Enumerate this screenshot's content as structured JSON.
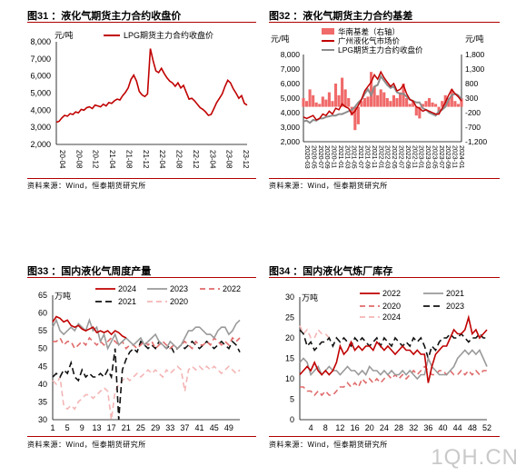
{
  "charts": [
    {
      "title": "图31 ：液化气期货主力合约收盘价",
      "source": "资料来源：Wind，恒泰期货研究所",
      "chart_data": {
        "type": "line",
        "yunit": "元/吨",
        "ylim": [
          2000,
          8000
        ],
        "yticks": [
          "2,000",
          "3,000",
          "4,000",
          "5,000",
          "6,000",
          "7,000",
          "8,000"
        ],
        "xticks": [
          "20-04",
          "20-08",
          "20-12",
          "21-04",
          "21-08",
          "21-12",
          "22-04",
          "22-08",
          "22-12",
          "23-04",
          "23-08",
          "23-12"
        ],
        "series": [
          {
            "name": "LPG期货主力合约收盘价",
            "color": "#c00000",
            "values": [
              3300,
              3350,
              3550,
              3700,
              3650,
              3800,
              3750,
              3900,
              3850,
              4050,
              4000,
              4150,
              4200,
              4100,
              4300,
              4250,
              4200,
              4350,
              4250,
              4450,
              4400,
              4550,
              4650,
              4600,
              4850,
              5050,
              5300,
              5800,
              6050,
              5700,
              5100,
              4900,
              4800,
              4950,
              7600,
              6900,
              6300,
              6200,
              6450,
              6150,
              5900,
              5700,
              5600,
              5400,
              5600,
              5300,
              5450,
              5050,
              4650,
              4700,
              4550,
              4350,
              4150,
              4050,
              3900,
              3700,
              3750,
              4100,
              4450,
              4700,
              4950,
              5400,
              5750,
              5600,
              5250,
              5000,
              4700,
              4850,
              4400,
              4300
            ]
          }
        ]
      }
    },
    {
      "title": "图32 ：液化气期货主力合约基差",
      "source": "资料来源：Wind，恒泰期货研究所",
      "chart_data": {
        "type": "line",
        "yunit": "元/吨",
        "y2unit": "元/吨",
        "ylim": [
          2000,
          8000
        ],
        "yticks": [
          "2,000",
          "3,000",
          "4,000",
          "5,000",
          "6,000",
          "7,000",
          "8,000"
        ],
        "y2lim": [
          -1200,
          1800
        ],
        "y2ticks": [
          "-1,200",
          "-700",
          "-200",
          "300",
          "800",
          "1,300",
          "1,800"
        ],
        "xticks": [
          "2020-03",
          "2020-05",
          "2020-07",
          "2020-09",
          "2020-11",
          "2021-01",
          "2021-03",
          "2021-05",
          "2021-07",
          "2021-09",
          "2021-11",
          "2022-01",
          "2022-03",
          "2022-05",
          "2022-07",
          "2022-09",
          "2022-11",
          "2023-01",
          "2023-03",
          "2023-05",
          "2023-07",
          "2023-09",
          "2023-11",
          "2024-01"
        ],
        "legend": [
          "华南基差（右轴）",
          "广州液化气市场价",
          "LPG期货主力合约收盘价"
        ],
        "series": [
          {
            "name": "华南基差（右轴）",
            "color": "#f06a6a",
            "axis": "right",
            "values": [
              300,
              200,
              600,
              400,
              150,
              100,
              350,
              250,
              500,
              200,
              800,
              400,
              1000,
              600,
              300,
              -300,
              -800,
              -600,
              200,
              300,
              350,
              1200,
              700,
              400,
              600,
              500,
              300,
              200,
              400,
              300,
              500,
              800,
              300,
              100,
              200,
              -300,
              -400,
              100,
              200,
              300,
              150,
              100,
              -200,
              200,
              400,
              300,
              600,
              200,
              100,
              300
            ]
          },
          {
            "name": "广州液化气市场价",
            "color": "#c00000",
            "axis": "left",
            "values": [
              3700,
              3600,
              3700,
              3800,
              3500,
              3600,
              3900,
              3800,
              4100,
              3900,
              4300,
              4200,
              4600,
              4400,
              4300,
              3900,
              4100,
              4500,
              4900,
              5500,
              5800,
              6100,
              6600,
              6300,
              6800,
              6400,
              6100,
              5800,
              6000,
              5500,
              5600,
              5900,
              5300,
              4900,
              4800,
              4400,
              4300,
              4100,
              4200,
              4100,
              4000,
              3900,
              3900,
              4300,
              4700,
              5200,
              5600,
              5300,
              5100,
              4800
            ]
          },
          {
            "name": "LPG期货主力合约收盘价",
            "color": "#8c8c8c",
            "axis": "left",
            "values": [
              3400,
              3450,
              3300,
              3500,
              3450,
              3600,
              3600,
              3700,
              3750,
              3800,
              3800,
              3900,
              3900,
              4000,
              4100,
              4200,
              4400,
              4700,
              4900,
              5300,
              5600,
              5200,
              5800,
              5900,
              6500,
              6200,
              5900,
              5700,
              5800,
              5400,
              5300,
              5300,
              5100,
              4900,
              4800,
              4700,
              4700,
              4300,
              4200,
              4000,
              3900,
              3800,
              4100,
              4200,
              4400,
              4900,
              5200,
              5300,
              5200,
              4900
            ]
          }
        ]
      }
    },
    {
      "title": "图33 ：国内液化气周度产量",
      "source": "资料来源：Wind，恒泰期货研究所",
      "chart_data": {
        "type": "line",
        "yunit": "万吨",
        "ylim": [
          30,
          65
        ],
        "yticks": [
          "30",
          "35",
          "40",
          "45",
          "50",
          "55",
          "60",
          "65"
        ],
        "xlim": [
          1,
          52
        ],
        "xticks": [
          "1",
          "5",
          "9",
          "13",
          "17",
          "21",
          "25",
          "29",
          "33",
          "37",
          "41",
          "45",
          "49"
        ],
        "series": [
          {
            "name": "2024",
            "color": "#c00000",
            "dash": "",
            "values": [
              57.5,
              59,
              58.5,
              57.5,
              58,
              56.5,
              56,
              56.5,
              55.5,
              55,
              55.5,
              56,
              54.5,
              55,
              54.5,
              55,
              54,
              55,
              54.5,
              53.5,
              53
            ]
          },
          {
            "name": "2023",
            "color": "#9a9a9a",
            "dash": "",
            "values": [
              56,
              58,
              55,
              54,
              55,
              56,
              55,
              57,
              56,
              55,
              58,
              55,
              56,
              52,
              54,
              50,
              52,
              54,
              51,
              52,
              53,
              52,
              51,
              52,
              53,
              51,
              52,
              53,
              54,
              52,
              51,
              50,
              52,
              51,
              50,
              51,
              53,
              55,
              55,
              56,
              56,
              55,
              54,
              54,
              53,
              55,
              56,
              56,
              54,
              55,
              57,
              58
            ]
          },
          {
            "name": "2022",
            "color": "#e06a6a",
            "dash": "6,4",
            "values": [
              52,
              52,
              53,
              51,
              52,
              52,
              50,
              51,
              52,
              51,
              53,
              52,
              51,
              52,
              51,
              52,
              53,
              52,
              51,
              52,
              50,
              51,
              51,
              50,
              51,
              52,
              51,
              52,
              50,
              51,
              52,
              51,
              50,
              51,
              50,
              51,
              52,
              51,
              50,
              52,
              51,
              51,
              52,
              51,
              53,
              52,
              51,
              52,
              51,
              53,
              52,
              53
            ]
          },
          {
            "name": "2021",
            "color": "#111111",
            "dash": "7,4",
            "values": [
              42,
              43,
              42,
              44,
              43,
              46,
              42,
              41,
              44,
              42,
              43,
              42,
              42,
              43,
              42,
              44,
              42,
              50,
              30,
              44,
              47,
              49,
              50,
              49,
              52,
              51,
              50,
              51,
              50,
              52,
              51,
              50,
              51,
              49,
              50,
              51,
              50,
              51,
              52,
              51,
              50,
              51,
              52,
              51,
              50,
              51,
              52,
              51,
              50,
              52,
              51,
              49
            ]
          },
          {
            "name": "2020",
            "color": "#f4b5b5",
            "dash": "6,4",
            "values": [
              41,
              40,
              42,
              34,
              33,
              34,
              33,
              35,
              36,
              37,
              37,
              36,
              37,
              38,
              39,
              38,
              30,
              38,
              40,
              41,
              42,
              41,
              42,
              43,
              42,
              43,
              44,
              43,
              44,
              43,
              42,
              44,
              43,
              44,
              45,
              44,
              38,
              44,
              45,
              44,
              45,
              44,
              45,
              44,
              45,
              44,
              43,
              44,
              45,
              44,
              43,
              44
            ]
          }
        ]
      }
    },
    {
      "title": "图34 ：国内液化气炼厂库存",
      "source": "资料来源：Wind，恒泰期货研究所",
      "chart_data": {
        "type": "line",
        "yunit": "万吨",
        "ylim": [
          0,
          30
        ],
        "yticks": [
          "0",
          "5",
          "10",
          "15",
          "20",
          "25",
          "30"
        ],
        "xlim": [
          1,
          52
        ],
        "xticks": [
          "4",
          "8",
          "12",
          "16",
          "20",
          "24",
          "28",
          "32",
          "36",
          "40",
          "44",
          "48",
          "52"
        ],
        "series": [
          {
            "name": "2022",
            "color": "#c00000",
            "dash": "",
            "values": [
              11,
              12,
              13,
              12,
              14,
              12,
              11,
              12,
              11,
              12,
              14,
              18,
              16,
              17,
              19,
              17,
              18,
              17,
              18,
              18,
              17,
              19,
              18,
              17,
              18,
              17,
              16,
              17,
              18,
              17,
              17,
              16,
              17,
              16,
              16,
              9,
              13,
              16,
              17,
              18,
              18,
              20,
              22,
              21,
              21,
              22,
              25,
              21,
              22,
              20,
              21,
              22
            ]
          },
          {
            "name": "2021",
            "color": "#9a9a9a",
            "dash": "",
            "values": [
              14,
              15,
              14,
              11,
              12,
              13,
              11,
              12,
              13,
              12,
              12,
              11,
              12,
              13,
              12,
              12,
              11,
              12,
              11,
              13,
              12,
              12,
              11,
              12,
              11,
              12,
              11,
              11,
              12,
              11,
              12,
              11,
              10,
              11,
              11,
              15,
              13,
              12,
              11,
              11,
              11,
              12,
              13,
              15,
              16,
              17,
              16,
              17,
              16,
              17,
              15,
              13
            ]
          },
          {
            "name": "2020",
            "color": "#e06a6a",
            "dash": "6,4",
            "values": [
              8,
              8,
              7,
              7,
              6,
              7,
              6,
              7,
              6,
              6,
              7,
              8,
              8,
              9,
              8,
              9,
              8,
              10,
              9,
              10,
              9,
              10,
              9,
              10,
              11,
              10,
              11,
              10,
              11,
              10,
              11,
              12,
              11,
              12,
              13,
              12,
              11,
              11,
              12,
              12,
              11,
              12,
              11,
              11,
              12,
              11,
              12,
              11,
              12,
              11,
              12,
              12
            ]
          },
          {
            "name": "2023",
            "color": "#111111",
            "dash": "7,4",
            "values": [
              22,
              21,
              18,
              19,
              17,
              18,
              19,
              19,
              20,
              18,
              20,
              19,
              20,
              19,
              18,
              20,
              19,
              20,
              19,
              18,
              19,
              20,
              18,
              20,
              19,
              18,
              20,
              19,
              18,
              19,
              18,
              20,
              19,
              20,
              18,
              15,
              18,
              17,
              19,
              20,
              20,
              21,
              20,
              20,
              21,
              20,
              19,
              20,
              20,
              21,
              20,
              20
            ]
          },
          {
            "name": "2024",
            "color": "#f4b5b5",
            "dash": "6,4",
            "values": [
              23,
              21,
              22,
              20,
              20,
              22,
              21,
              21,
              20
            ]
          }
        ]
      }
    }
  ],
  "watermark": "1QH.CN"
}
